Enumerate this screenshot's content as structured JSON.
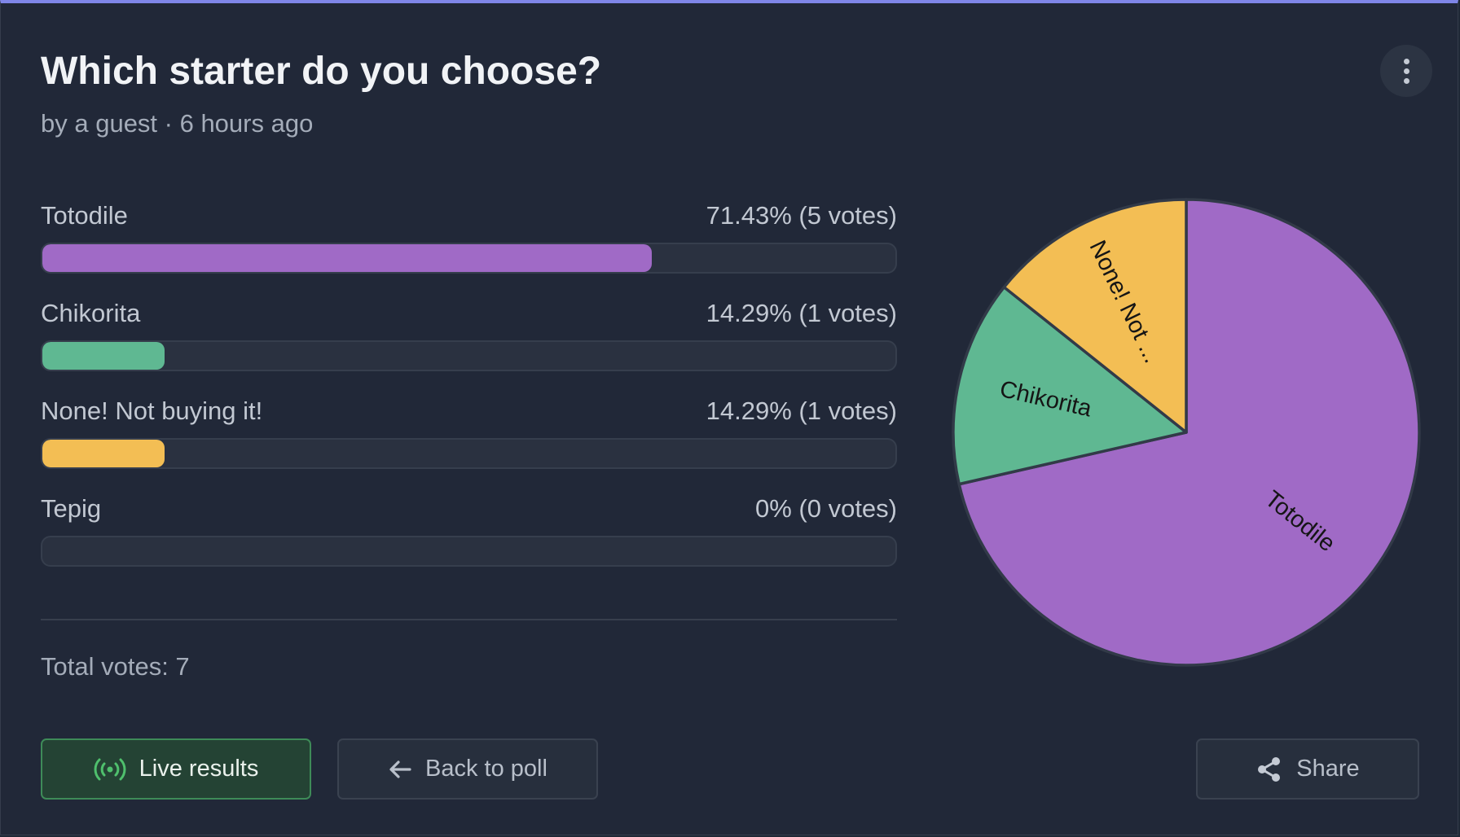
{
  "poll": {
    "title": "Which starter do you choose?",
    "meta": "by a guest · 6 hours ago",
    "options": [
      {
        "label": "Totodile",
        "result": "71.43% (5 votes)",
        "percent": 71.43,
        "color": "#a06ac6"
      },
      {
        "label": "Chikorita",
        "result": "14.29% (1 votes)",
        "percent": 14.29,
        "color": "#5fb892"
      },
      {
        "label": "None! Not buying it!",
        "result": "14.29% (1 votes)",
        "percent": 14.29,
        "color": "#f3be54"
      },
      {
        "label": "Tepig",
        "result": "0% (0 votes)",
        "percent": 0,
        "color": "#8b93a1"
      }
    ],
    "total": "Total votes: 7"
  },
  "buttons": {
    "live": "Live results",
    "back": "Back to poll",
    "share": "Share"
  },
  "chart_data": {
    "type": "pie",
    "categories": [
      "Totodile",
      "Chikorita",
      "None! Not buying it!"
    ],
    "slice_labels": [
      "Totodile",
      "Chikorita",
      "None! Not ..."
    ],
    "values": [
      5,
      1,
      1
    ],
    "colors": [
      "#a06ac6",
      "#5fb892",
      "#f3be54"
    ]
  }
}
